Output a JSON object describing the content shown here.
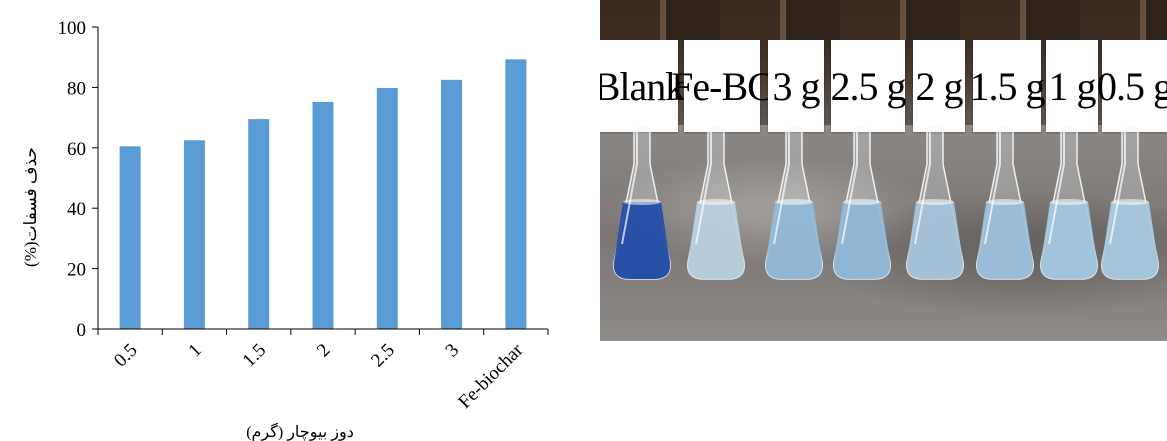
{
  "chart_data": {
    "type": "bar",
    "categories": [
      "0.5",
      "1",
      "1.5",
      "2",
      "2.5",
      "3",
      "Fe-biochar"
    ],
    "values": [
      60.5,
      62.5,
      69.5,
      75.2,
      79.8,
      82.5,
      89.3
    ],
    "xlabel": "دوز بیوچار (گرم)",
    "ylabel": "حذف فسفات(%)",
    "ylim": [
      0,
      100
    ],
    "yticks": [
      0,
      20,
      40,
      60,
      80,
      100
    ],
    "bar_color": "#5b9bd5",
    "grid": false
  },
  "photo": {
    "labels": [
      "Blank",
      "Fe-BC",
      "3 g",
      "2.5 g",
      "2 g",
      "1.5 g",
      "1 g",
      "0.5 g"
    ],
    "liquid_colors": [
      "#1f4aa8",
      "#b9cfe0",
      "#8fb8d8",
      "#8fb8d8",
      "#a7c3da",
      "#9cc0dc",
      "#a3c8e2",
      "#a6c9e0"
    ]
  }
}
